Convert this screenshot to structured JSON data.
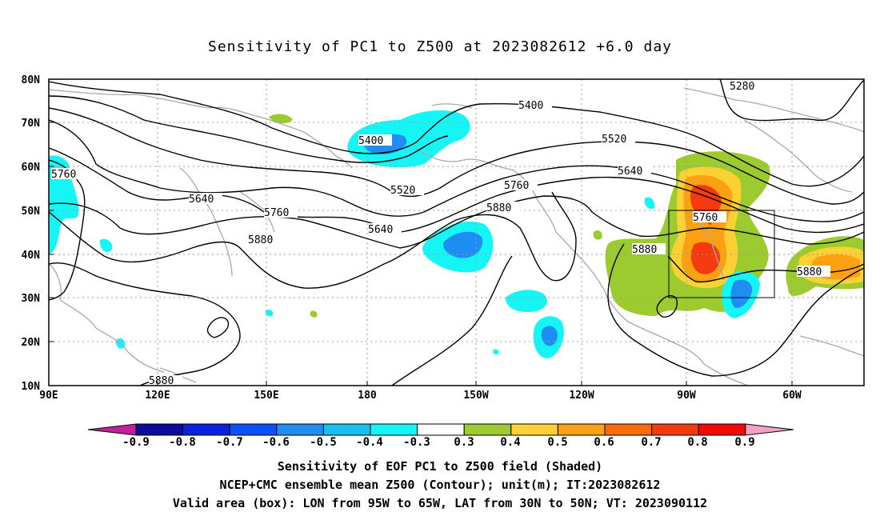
{
  "title": "Sensitivity of PC1 to Z500 at 2023082612 +6.0 day",
  "lat_labels": [
    "80N",
    "70N",
    "60N",
    "50N",
    "40N",
    "30N",
    "20N",
    "10N"
  ],
  "lon_labels": [
    "90E",
    "120E",
    "150E",
    "180",
    "150W",
    "120W",
    "90W",
    "60W"
  ],
  "contour_labels": [
    {
      "text": "5280"
    },
    {
      "text": "5400"
    },
    {
      "text": "5400"
    },
    {
      "text": "5520"
    },
    {
      "text": "5520"
    },
    {
      "text": "5640"
    },
    {
      "text": "5640"
    },
    {
      "text": "5640"
    },
    {
      "text": "5760"
    },
    {
      "text": "5760"
    },
    {
      "text": "5760"
    },
    {
      "text": "5760"
    },
    {
      "text": "5880"
    },
    {
      "text": "5880"
    },
    {
      "text": "5880"
    },
    {
      "text": "5880"
    },
    {
      "text": "5880"
    }
  ],
  "colorbar": {
    "ticks": [
      "-0.9",
      "-0.8",
      "-0.7",
      "-0.6",
      "-0.5",
      "-0.4",
      "-0.3",
      "0.3",
      "0.4",
      "0.5",
      "0.6",
      "0.7",
      "0.8",
      "0.9"
    ],
    "colors": [
      "#c4209c",
      "#0b0b9c",
      "#0c20e0",
      "#0d50ff",
      "#1f8ef2",
      "#18c0f0",
      "#16f5f5",
      "#ffffff",
      "#9ccb2f",
      "#fdd034",
      "#fda011",
      "#fd6a0c",
      "#f53a10",
      "#f50806",
      "#f79ec9"
    ]
  },
  "caption": {
    "line1": "Sensitivity of EOF PC1 to Z500 field (Shaded)",
    "line2": "NCEP+CMC ensemble mean Z500 (Contour); unit(m); IT:2023082612",
    "line3": "Valid area (box): LON from 95W to 65W, LAT from 30N to 50N; VT: 2023090112"
  }
}
